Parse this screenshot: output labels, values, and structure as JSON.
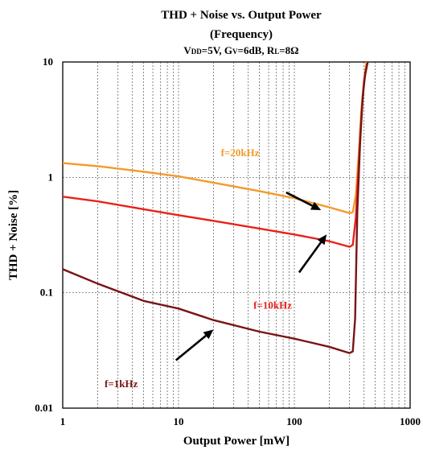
{
  "chart_data": {
    "type": "line",
    "title": "THD + Noise vs. Output Power",
    "subtitle": "(Frequency)",
    "conditions": {
      "vdd_main": "V",
      "vdd_sub": "DD",
      "vdd_val": "=5V, ",
      "gv_main": "G",
      "gv_sub": "V",
      "gv_val": "=6dB, ",
      "rl_main": "R",
      "rl_sub": "L",
      "rl_val": "=8Ω"
    },
    "xlabel": "Output Power [mW]",
    "ylabel": "THD + Noise [%]",
    "x_scale": "log",
    "y_scale": "log",
    "xlim": [
      1,
      1000
    ],
    "ylim": [
      0.01,
      10
    ],
    "x_ticks": [
      {
        "value": 1,
        "label": "1"
      },
      {
        "value": 10,
        "label": "10"
      },
      {
        "value": 100,
        "label": "100"
      },
      {
        "value": 1000,
        "label": "1000"
      }
    ],
    "y_ticks": [
      {
        "value": 0.01,
        "label": "0.01"
      },
      {
        "value": 0.1,
        "label": "0.1"
      },
      {
        "value": 1,
        "label": "1"
      },
      {
        "value": 10,
        "label": "10"
      }
    ],
    "grid": true,
    "series": [
      {
        "name": "f=20kHz",
        "color": "#f39a2a",
        "points": [
          [
            1,
            1.33
          ],
          [
            2,
            1.25
          ],
          [
            5,
            1.12
          ],
          [
            10,
            1.02
          ],
          [
            20,
            0.9
          ],
          [
            50,
            0.76
          ],
          [
            100,
            0.66
          ],
          [
            200,
            0.55
          ],
          [
            300,
            0.49
          ],
          [
            320,
            0.5
          ],
          [
            340,
            0.7
          ],
          [
            360,
            1.6
          ],
          [
            380,
            4.0
          ],
          [
            400,
            7.0
          ],
          [
            420,
            10
          ]
        ]
      },
      {
        "name": "f=10kHz",
        "color": "#e8221c",
        "points": [
          [
            1,
            0.68
          ],
          [
            2,
            0.62
          ],
          [
            5,
            0.53
          ],
          [
            10,
            0.47
          ],
          [
            20,
            0.42
          ],
          [
            50,
            0.36
          ],
          [
            100,
            0.32
          ],
          [
            200,
            0.28
          ],
          [
            300,
            0.25
          ],
          [
            320,
            0.26
          ],
          [
            340,
            0.45
          ],
          [
            360,
            1.3
          ],
          [
            380,
            3.5
          ],
          [
            400,
            6.8
          ],
          [
            430,
            10
          ]
        ]
      },
      {
        "name": "f=1kHz",
        "color": "#7a1416",
        "points": [
          [
            1,
            0.16
          ],
          [
            2,
            0.12
          ],
          [
            5,
            0.085
          ],
          [
            10,
            0.073
          ],
          [
            20,
            0.058
          ],
          [
            50,
            0.046
          ],
          [
            100,
            0.04
          ],
          [
            200,
            0.034
          ],
          [
            300,
            0.03
          ],
          [
            320,
            0.031
          ],
          [
            335,
            0.06
          ],
          [
            350,
            0.5
          ],
          [
            370,
            2.0
          ],
          [
            390,
            5.0
          ],
          [
            410,
            8.0
          ],
          [
            430,
            10
          ]
        ]
      }
    ],
    "annotations": [
      {
        "text": "f=20kHz",
        "series": "f=20kHz",
        "label_at": [
          34,
          1.53
        ],
        "arrow_from": [
          85,
          0.74
        ],
        "arrow_to": [
          170,
          0.52
        ]
      },
      {
        "text": "f=10kHz",
        "series": "f=10kHz",
        "label_at": [
          65,
          0.073
        ],
        "arrow_from": [
          110,
          0.15
        ],
        "arrow_to": [
          190,
          0.32
        ]
      },
      {
        "text": "f=1kHz",
        "series": "f=1kHz",
        "label_at": [
          3.2,
          0.0152
        ],
        "arrow_from": [
          9.5,
          0.026
        ],
        "arrow_to": [
          20,
          0.048
        ]
      }
    ]
  }
}
